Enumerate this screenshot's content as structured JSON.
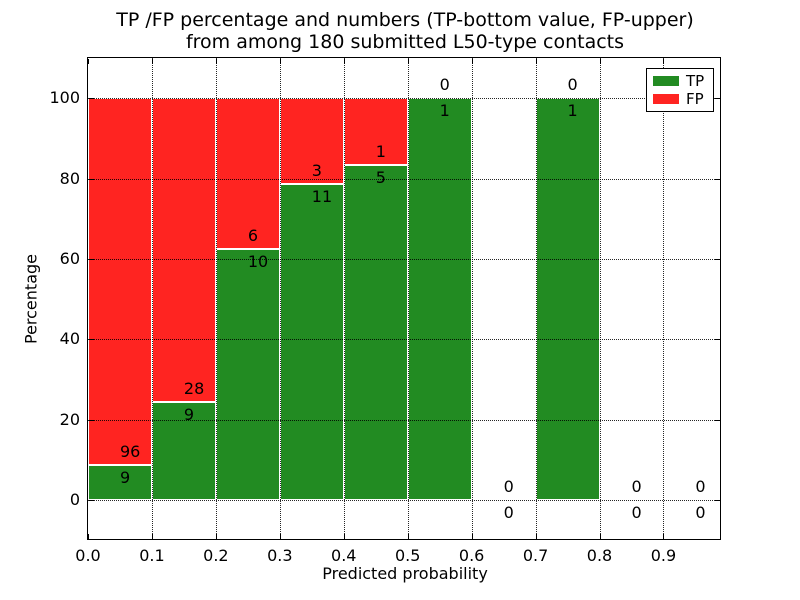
{
  "figure": {
    "title_line1": "TP /FP percentage and numbers (TP-bottom value, FP-upper)",
    "title_line2": "from among 180 submitted L50-type contacts"
  },
  "chart_data": {
    "type": "bar",
    "stacked": true,
    "title": "TP /FP percentage and numbers (TP-bottom value, FP-upper)\nfrom among 180 submitted L50-type contacts",
    "xlabel": "Predicted probability",
    "ylabel": "Percentage",
    "total_contacts": 180,
    "bin_width": 0.1,
    "bin_starts": [
      0.0,
      0.1,
      0.2,
      0.3,
      0.4,
      0.5,
      0.6,
      0.7,
      0.8,
      0.9
    ],
    "series": [
      {
        "name": "TP",
        "color": "#228B22",
        "counts": [
          9,
          9,
          10,
          11,
          5,
          1,
          0,
          1,
          0,
          0
        ]
      },
      {
        "name": "FP",
        "color": "#FF2421",
        "counts": [
          96,
          28,
          6,
          3,
          1,
          0,
          0,
          0,
          0,
          0
        ]
      }
    ],
    "percent_tp": [
      8.57,
      24.32,
      62.5,
      78.57,
      83.33,
      100,
      0,
      100,
      0,
      0
    ],
    "xticks": [
      "0.0",
      "0.1",
      "0.2",
      "0.3",
      "0.4",
      "0.5",
      "0.6",
      "0.7",
      "0.8",
      "0.9"
    ],
    "yticks": [
      0,
      20,
      40,
      60,
      80,
      100
    ],
    "xlim": [
      0,
      0.99
    ],
    "ylim": [
      -10,
      110
    ],
    "grid": "dotted",
    "legend": {
      "position": "upper right",
      "entries": [
        {
          "label": "TP",
          "color": "#228B22"
        },
        {
          "label": "FP",
          "color": "#FF2421"
        }
      ]
    }
  }
}
